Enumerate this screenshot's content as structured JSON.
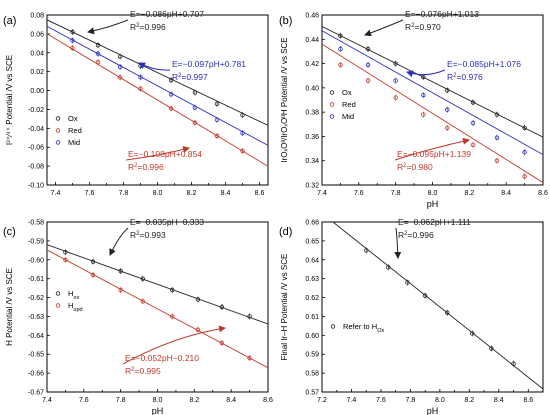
{
  "figure": {
    "panels": [
      {
        "label": "(a)",
        "ylabel": "I³⁺⁄⁴⁺ Potential /V vs SCE",
        "xlabel": "",
        "legend": [
          "Ox",
          "Red",
          "Mid"
        ],
        "legend_sub": [
          "",
          "",
          ""
        ]
      },
      {
        "label": "(b)",
        "ylabel": "IrOₓOᴵᴵ/IrOₓOᴵᴵH Potential /V vs SCE",
        "xlabel": "pH",
        "legend": [
          "Ox",
          "Red",
          "Mid"
        ],
        "legend_sub": [
          "",
          "",
          ""
        ]
      },
      {
        "label": "(c)",
        "ylabel": "H Potential /V vs SCE",
        "xlabel": "pH",
        "legend": [
          "H",
          "H"
        ],
        "legend_sub": [
          "ox",
          "upd"
        ]
      },
      {
        "label": "(d)",
        "ylabel": "Final Ir–H Potential /V vs SCE",
        "xlabel": "pH",
        "legend": [
          "Refer to H"
        ],
        "legend_sub": [
          "Ox"
        ]
      }
    ]
  },
  "chart_data": [
    {
      "type": "scatter",
      "panel": "(a)",
      "xlabel": "",
      "ylabel": "I³⁺⁄⁴⁺ Potential /V vs SCE",
      "xlim": [
        7.35,
        8.65
      ],
      "ylim": [
        -0.1,
        0.08
      ],
      "xticks": [
        "7.4",
        "7.6",
        "7.8",
        "8.0",
        "8.2",
        "8.4",
        "8.6"
      ],
      "yticks": [
        "0.08",
        "0.06",
        "0.04",
        "0.02",
        "0.00",
        "-0.02",
        "-0.04",
        "-0.06",
        "-0.08",
        "-0.10"
      ],
      "x": [
        7.5,
        7.65,
        7.78,
        7.9,
        8.08,
        8.22,
        8.35,
        8.5
      ],
      "series": [
        {
          "name": "Ox",
          "color": "#222222",
          "values": [
            0.062,
            0.048,
            0.036,
            0.026,
            0.011,
            -0.002,
            -0.014,
            -0.026
          ],
          "slope": -0.086,
          "intercept": 0.707
        },
        {
          "name": "Red",
          "color": "#c0392b",
          "values": [
            0.045,
            0.03,
            0.014,
            0.002,
            -0.019,
            -0.034,
            -0.048,
            -0.064
          ],
          "slope": -0.108,
          "intercept": 0.854
        },
        {
          "name": "Mid",
          "color": "#2a2fbf",
          "values": [
            0.053,
            0.039,
            0.025,
            0.014,
            -0.004,
            -0.018,
            -0.031,
            -0.045
          ],
          "slope": -0.097,
          "intercept": 0.781
        }
      ],
      "annotations": [
        {
          "eq": "E=−0.086pH+0.707",
          "r2": "0.996",
          "color": "#222222"
        },
        {
          "eq": "E=−0.097pH+0.781",
          "r2": "0.997",
          "color": "#2a2fbf"
        },
        {
          "eq": "E=−0.108pH+0.854",
          "r2": "0.996",
          "color": "#c0392b"
        }
      ],
      "legend_position": "bottom-left"
    },
    {
      "type": "scatter",
      "panel": "(b)",
      "xlabel": "pH",
      "ylabel": "IrOₓOᴵᴵ/IrOₓOᴵᴵH Potential /V vs SCE",
      "xlim": [
        7.4,
        8.6
      ],
      "ylim": [
        0.32,
        0.46
      ],
      "xticks": [
        "7.4",
        "7.6",
        "7.8",
        "8.0",
        "8.2",
        "8.4",
        "8.6"
      ],
      "yticks": [
        "0.46",
        "0.44",
        "0.42",
        "0.40",
        "0.38",
        "0.36",
        "0.34",
        "0.32"
      ],
      "x": [
        7.5,
        7.65,
        7.8,
        7.95,
        8.08,
        8.22,
        8.35,
        8.5
      ],
      "series": [
        {
          "name": "Ox",
          "color": "#222222",
          "values": [
            0.443,
            0.432,
            0.42,
            0.409,
            0.398,
            0.388,
            0.378,
            0.367
          ],
          "slope": -0.076,
          "intercept": 1.013
        },
        {
          "name": "Red",
          "color": "#c0392b",
          "values": [
            0.419,
            0.406,
            0.392,
            0.378,
            0.367,
            0.353,
            0.34,
            0.327
          ],
          "slope": -0.095,
          "intercept": 1.139
        },
        {
          "name": "Mid",
          "color": "#2a2fbf",
          "values": [
            0.432,
            0.419,
            0.406,
            0.394,
            0.382,
            0.371,
            0.359,
            0.347
          ],
          "slope": -0.085,
          "intercept": 1.076
        }
      ],
      "annotations": [
        {
          "eq": "E=−0.076pH+1.013",
          "r2": "0.970",
          "color": "#222222"
        },
        {
          "eq": "E=−0.085pH+1.076",
          "r2": "0.976",
          "color": "#2a2fbf"
        },
        {
          "eq": "E=−0.095pH+1.139",
          "r2": "0.980",
          "color": "#c0392b"
        }
      ],
      "legend_position": "middle-left"
    },
    {
      "type": "scatter",
      "panel": "(c)",
      "xlabel": "pH",
      "ylabel": "H Potential /V vs SCE",
      "xlim": [
        7.4,
        8.6
      ],
      "ylim": [
        -0.67,
        -0.58
      ],
      "xticks": [
        "7.4",
        "7.6",
        "7.8",
        "8.0",
        "8.2",
        "8.4",
        "8.6"
      ],
      "yticks": [
        "-0.58",
        "-0.59",
        "-0.60",
        "-0.61",
        "-0.62",
        "-0.63",
        "-0.64",
        "-0.65",
        "-0.66",
        "-0.67"
      ],
      "x": [
        7.5,
        7.65,
        7.8,
        7.92,
        8.08,
        8.22,
        8.35,
        8.5
      ],
      "series": [
        {
          "name": "H_ox",
          "color": "#222222",
          "values": [
            -0.596,
            -0.601,
            -0.606,
            -0.61,
            -0.616,
            -0.621,
            -0.625,
            -0.63
          ],
          "slope": -0.035,
          "intercept": -0.333
        },
        {
          "name": "H_upd",
          "color": "#c0392b",
          "values": [
            -0.6,
            -0.608,
            -0.616,
            -0.622,
            -0.63,
            -0.637,
            -0.644,
            -0.652
          ],
          "slope": -0.052,
          "intercept": -0.21
        }
      ],
      "annotations": [
        {
          "eq": "E=−0.035pH−0.333",
          "r2": "0.993",
          "color": "#222222"
        },
        {
          "eq": "E=−0.052pH−0.210",
          "r2": "0.995",
          "color": "#c0392b"
        }
      ],
      "legend_position": "middle-left"
    },
    {
      "type": "scatter",
      "panel": "(d)",
      "xlabel": "pH",
      "ylabel": "Final Ir–H Potential /V vs SCE",
      "xlim": [
        7.2,
        8.7
      ],
      "ylim": [
        0.57,
        0.66
      ],
      "xticks": [
        "7.2",
        "7.4",
        "7.6",
        "7.8",
        "8.0",
        "8.2",
        "8.4",
        "8.6"
      ],
      "yticks": [
        "0.66",
        "0.65",
        "0.64",
        "0.63",
        "0.62",
        "0.61",
        "0.60",
        "0.59",
        "0.58",
        "0.57"
      ],
      "x": [
        7.5,
        7.65,
        7.78,
        7.9,
        8.05,
        8.22,
        8.35,
        8.5
      ],
      "series": [
        {
          "name": "Refer to H_Ox",
          "color": "#222222",
          "values": [
            0.645,
            0.636,
            0.628,
            0.621,
            0.612,
            0.601,
            0.593,
            0.585
          ],
          "slope": -0.062,
          "intercept": 1.111
        }
      ],
      "annotations": [
        {
          "eq": "E=−0.062pH+1.111",
          "r2": "0.996",
          "color": "#222222"
        }
      ],
      "legend_position": "bottom-left"
    }
  ]
}
